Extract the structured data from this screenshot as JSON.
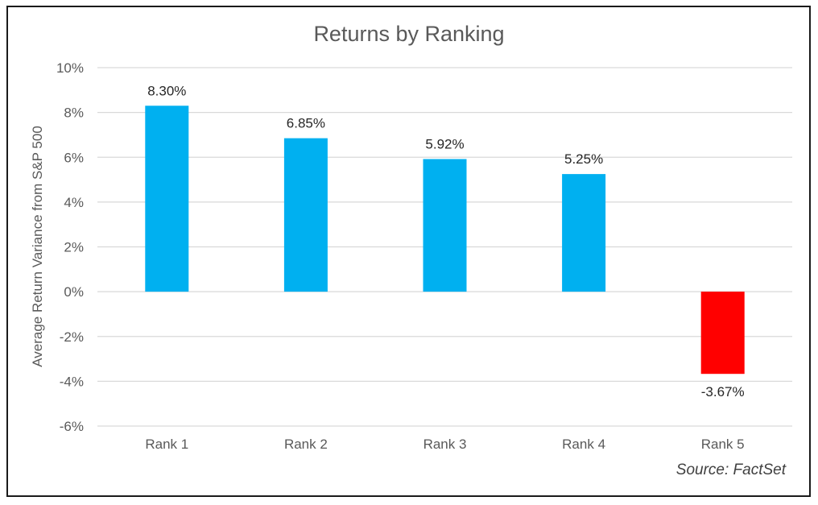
{
  "chart_data": {
    "type": "bar",
    "title": "Returns by Ranking",
    "ylabel": "Average Return Variance from S&P 500",
    "xlabel": "",
    "categories": [
      "Rank 1",
      "Rank 2",
      "Rank 3",
      "Rank 4",
      "Rank 5"
    ],
    "values": [
      8.3,
      6.85,
      5.92,
      5.25,
      -3.67
    ],
    "data_labels": [
      "8.30%",
      "6.85%",
      "5.92%",
      "5.25%",
      "-3.67%"
    ],
    "ylim": [
      -6,
      10
    ],
    "yticks": [
      10,
      8,
      6,
      4,
      2,
      0,
      -2,
      -4,
      -6
    ],
    "ytick_labels": [
      "10%",
      "8%",
      "6%",
      "4%",
      "2%",
      "0%",
      "-2%",
      "-4%",
      "-6%"
    ],
    "grid": true,
    "legend": "none",
    "colors": {
      "positive": "#00B0F0",
      "negative": "#FF0000",
      "grid": "#D9D9D9",
      "text": "#595959"
    }
  },
  "source": "Source: FactSet"
}
